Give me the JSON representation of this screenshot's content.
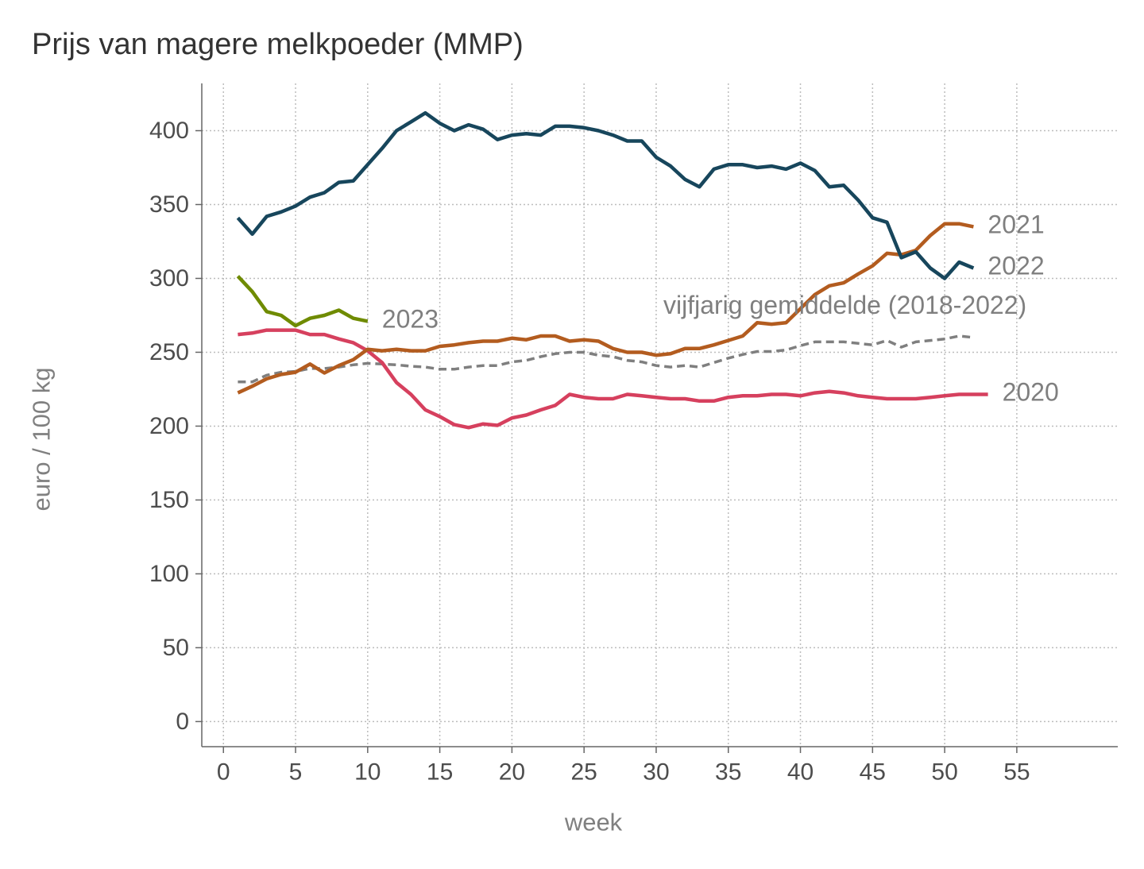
{
  "chart_data": {
    "type": "line",
    "title": "Prijs van magere melkpoeder (MMP)",
    "xlabel": "week",
    "ylabel": "euro / 100 kg",
    "xlim": [
      -1.5,
      62
    ],
    "ylim": [
      -17,
      432
    ],
    "xticks": [
      0,
      5,
      10,
      15,
      20,
      25,
      30,
      35,
      40,
      45,
      50,
      55
    ],
    "yticks": [
      0,
      50,
      100,
      150,
      200,
      250,
      300,
      350,
      400
    ],
    "grid": true,
    "series": [
      {
        "name": "2020",
        "color": "#d6405e",
        "dashed": false,
        "x": [
          1,
          2,
          3,
          4,
          5,
          6,
          7,
          8,
          9,
          10,
          11,
          12,
          13,
          14,
          15,
          16,
          17,
          18,
          19,
          20,
          21,
          22,
          23,
          24,
          25,
          26,
          27,
          28,
          29,
          30,
          31,
          32,
          33,
          34,
          35,
          36,
          37,
          38,
          39,
          40,
          41,
          42,
          43,
          44,
          45,
          46,
          47,
          48,
          49,
          50,
          51,
          52,
          53
        ],
        "values": [
          262,
          263,
          265,
          265,
          265,
          262,
          262,
          259,
          256.5,
          251,
          243,
          229.5,
          221.5,
          211,
          206.5,
          201,
          199,
          201.5,
          200.5,
          205.5,
          207.5,
          211,
          214,
          221.5,
          219.5,
          218.5,
          218.5,
          221.5,
          220.5,
          219.5,
          218.5,
          218.5,
          217,
          217,
          219.5,
          220.5,
          220.5,
          221.5,
          221.5,
          220.5,
          222.5,
          223.5,
          222.5,
          220.5,
          219.5,
          218.5,
          218.5,
          218.5,
          219.5,
          220.5,
          221.5,
          221.5,
          221.5
        ]
      },
      {
        "name": "2021",
        "color": "#b35c1f",
        "dashed": false,
        "x": [
          1,
          2,
          3,
          4,
          5,
          6,
          7,
          8,
          9,
          10,
          11,
          12,
          13,
          14,
          15,
          16,
          17,
          18,
          19,
          20,
          21,
          22,
          23,
          24,
          25,
          26,
          27,
          28,
          29,
          30,
          31,
          32,
          33,
          34,
          35,
          36,
          37,
          38,
          39,
          40,
          41,
          42,
          43,
          44,
          45,
          46,
          47,
          48,
          49,
          50,
          51,
          52
        ],
        "values": [
          222.5,
          227,
          232,
          235,
          236.5,
          242,
          236,
          241,
          245,
          252,
          251,
          252,
          251,
          251,
          254,
          255,
          256.5,
          257.5,
          257.5,
          259.5,
          258.5,
          261,
          261,
          257.5,
          258.5,
          257.5,
          252.5,
          250,
          250,
          248,
          249,
          252.5,
          252.5,
          255,
          258,
          261,
          270,
          269,
          270,
          279.5,
          289,
          295,
          297,
          303,
          308.5,
          317,
          316,
          319,
          329,
          337,
          337,
          335
        ]
      },
      {
        "name": "2022",
        "color": "#17465c",
        "dashed": false,
        "x": [
          1,
          2,
          3,
          4,
          5,
          6,
          7,
          8,
          9,
          10,
          11,
          12,
          13,
          14,
          15,
          16,
          17,
          18,
          19,
          20,
          21,
          22,
          23,
          24,
          25,
          26,
          27,
          28,
          29,
          30,
          31,
          32,
          33,
          34,
          35,
          36,
          37,
          38,
          39,
          40,
          41,
          42,
          43,
          44,
          45,
          46,
          47,
          48,
          49,
          50,
          51,
          52
        ],
        "values": [
          341,
          330,
          342,
          345,
          349,
          355,
          358,
          365,
          366,
          377,
          388,
          400,
          406,
          412,
          405,
          400,
          404,
          401,
          394,
          397,
          398,
          397,
          403,
          403,
          402,
          400,
          397,
          393,
          393,
          382,
          376,
          367,
          362,
          374,
          377,
          377,
          375,
          376,
          374,
          378,
          373,
          362,
          363,
          353,
          341,
          338,
          314,
          318,
          307,
          300,
          311,
          307
        ]
      },
      {
        "name": "2023",
        "color": "#6f8b00",
        "dashed": false,
        "x": [
          1,
          2,
          3,
          4,
          5,
          6,
          7,
          8,
          9,
          10
        ],
        "values": [
          301.5,
          291,
          277.5,
          275,
          268,
          273,
          275,
          278.5,
          273,
          271
        ]
      },
      {
        "name": "vijfjarig gemiddelde (2018-2022)",
        "color": "#7f7f7f",
        "dashed": true,
        "x": [
          1,
          2,
          3,
          4,
          5,
          6,
          7,
          8,
          9,
          10,
          11,
          12,
          13,
          14,
          15,
          16,
          17,
          18,
          19,
          20,
          21,
          22,
          23,
          24,
          25,
          26,
          27,
          28,
          29,
          30,
          31,
          32,
          33,
          34,
          35,
          36,
          37,
          38,
          39,
          40,
          41,
          42,
          43,
          44,
          45,
          46,
          47,
          48,
          49,
          50,
          51,
          52
        ],
        "values": [
          230,
          230,
          234.5,
          236.5,
          237,
          239,
          239,
          240,
          241.5,
          242.5,
          242,
          241.5,
          240.5,
          240,
          238.5,
          238.5,
          240,
          241,
          241,
          243.5,
          244.5,
          247,
          249,
          250,
          250,
          248,
          247,
          244.5,
          243.5,
          241,
          240,
          241,
          240,
          243,
          246,
          248.5,
          250.5,
          250.5,
          251.5,
          254.5,
          257,
          257,
          257,
          256,
          255,
          258,
          253.5,
          257,
          258,
          259,
          261,
          260
        ]
      }
    ]
  }
}
